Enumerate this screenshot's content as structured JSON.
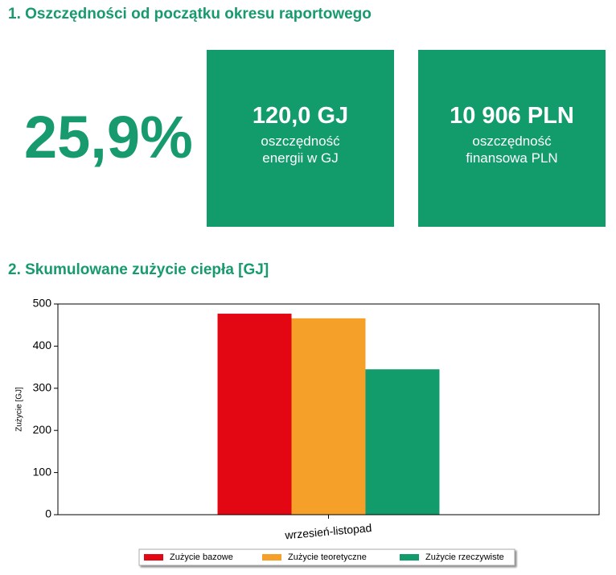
{
  "section1": {
    "title": "1. Oszczędności od początku okresu raportowego",
    "percent": "25,9%",
    "cards": [
      {
        "value": "120,0 GJ",
        "label_lines": [
          "oszczędność",
          "energii w GJ"
        ]
      },
      {
        "value": "10 906 PLN",
        "label_lines": [
          "oszczędność",
          "finansowa PLN"
        ]
      }
    ]
  },
  "section2": {
    "title": "2. Skumulowane zużycie ciepła [GJ]"
  },
  "chart_data": {
    "type": "bar",
    "ylabel": "Zużycie [GJ]",
    "categories": [
      "wrzesień-listopad"
    ],
    "series": [
      {
        "name": "Zużycie bazowe",
        "color": "#e30613",
        "values": [
          477
        ]
      },
      {
        "name": "Zużycie teoretyczne",
        "color": "#f5a028",
        "values": [
          466
        ]
      },
      {
        "name": "Zużycie rzeczywiste",
        "color": "#129c6c",
        "values": [
          345
        ]
      }
    ],
    "ylim": [
      0,
      500
    ],
    "yticks": [
      0,
      100,
      200,
      300,
      400,
      500
    ],
    "legend": "bottom"
  }
}
